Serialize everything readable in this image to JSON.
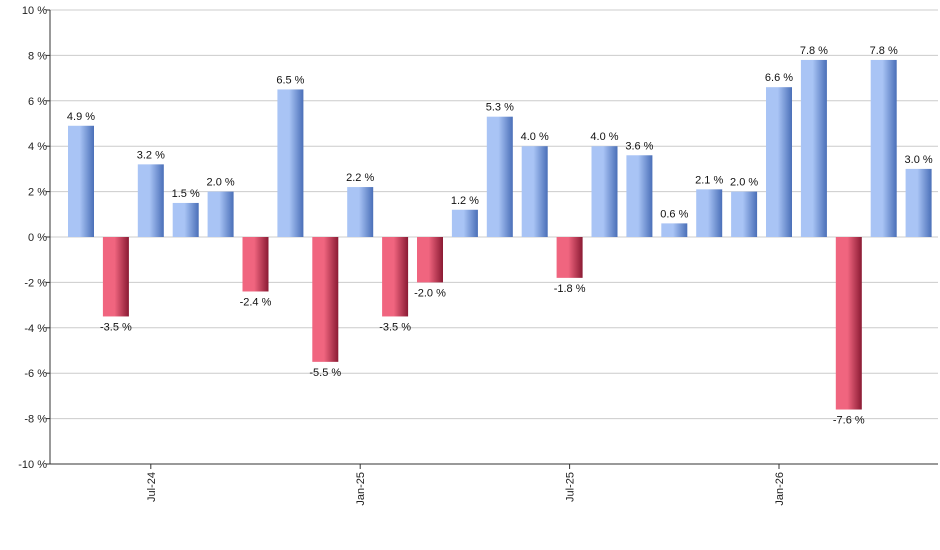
{
  "chart_data": {
    "type": "bar",
    "title": "",
    "xlabel": "",
    "ylabel": "",
    "ylim": [
      -10,
      10
    ],
    "y_ticks": [
      "10 %",
      "8 %",
      "6 %",
      "4 %",
      "2 %",
      "0 %",
      "-2 %",
      "-4 %",
      "-6 %",
      "-8 %",
      "-10 %"
    ],
    "y_tick_values": [
      10,
      8,
      6,
      4,
      2,
      0,
      -2,
      -4,
      -6,
      -8,
      -10
    ],
    "grid": true,
    "x_tick_labels": [
      {
        "label": "Jul-24",
        "index": 2
      },
      {
        "label": "Jan-25",
        "index": 8
      },
      {
        "label": "Jul-25",
        "index": 14
      },
      {
        "label": "Jan-26",
        "index": 20
      }
    ],
    "values": [
      4.9,
      -3.5,
      3.2,
      1.5,
      2.0,
      -2.4,
      6.5,
      -5.5,
      2.2,
      -3.5,
      -2.0,
      1.2,
      5.3,
      4.0,
      -1.8,
      4.0,
      3.6,
      0.6,
      2.1,
      2.0,
      6.6,
      7.8,
      -7.6,
      7.8,
      3.0
    ],
    "value_labels": [
      "4.9 %",
      "-3.5 %",
      "3.2 %",
      "1.5 %",
      "2.0 %",
      "-2.4 %",
      "6.5 %",
      "-5.5 %",
      "2.2 %",
      "-3.5 %",
      "-2.0 %",
      "1.2 %",
      "5.3 %",
      "4.0 %",
      "-1.8 %",
      "4.0 %",
      "3.6 %",
      "0.6 %",
      "2.1 %",
      "2.0 %",
      "6.6 %",
      "7.8 %",
      "-7.6 %",
      "7.8 %",
      "3.0 %"
    ],
    "colors": {
      "positive_light": "#a9c4f5",
      "positive_dark": "#4a6fb8",
      "negative_light": "#f0657f",
      "negative_dark": "#8a1a33",
      "grid": "#cccccc",
      "axis": "#333333"
    }
  }
}
